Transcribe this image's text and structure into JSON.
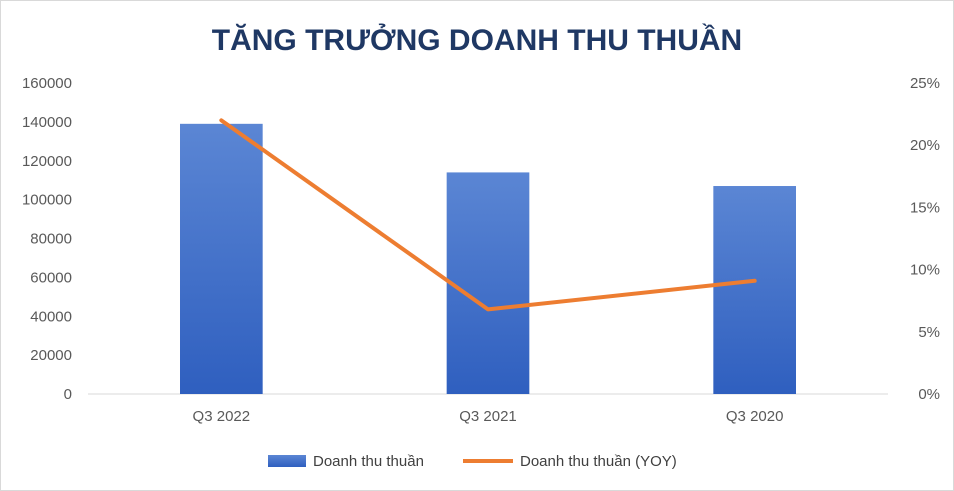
{
  "chart_data": {
    "type": "bar",
    "title": "TĂNG TRƯỞNG DOANH THU THUẦN",
    "categories": [
      "Q3 2022",
      "Q3 2021",
      "Q3 2020"
    ],
    "series": [
      {
        "name": "Doanh thu thuần",
        "type": "bar",
        "axis": "left",
        "values": [
          139000,
          114000,
          107000
        ],
        "color": "#4472c4"
      },
      {
        "name": "Doanh thu thuần (YOY)",
        "type": "line",
        "axis": "right",
        "values": [
          0.22,
          0.068,
          0.091
        ],
        "color": "#ed7d31"
      }
    ],
    "y_left": {
      "min": 0,
      "max": 160000,
      "step": 20000,
      "ticks": [
        "0",
        "20000",
        "40000",
        "60000",
        "80000",
        "100000",
        "120000",
        "140000",
        "160000"
      ]
    },
    "y_right": {
      "min": 0,
      "max": 0.25,
      "step": 0.05,
      "ticks": [
        "0%",
        "5%",
        "10%",
        "15%",
        "20%",
        "25%"
      ]
    },
    "grid": false,
    "legend_position": "bottom"
  }
}
